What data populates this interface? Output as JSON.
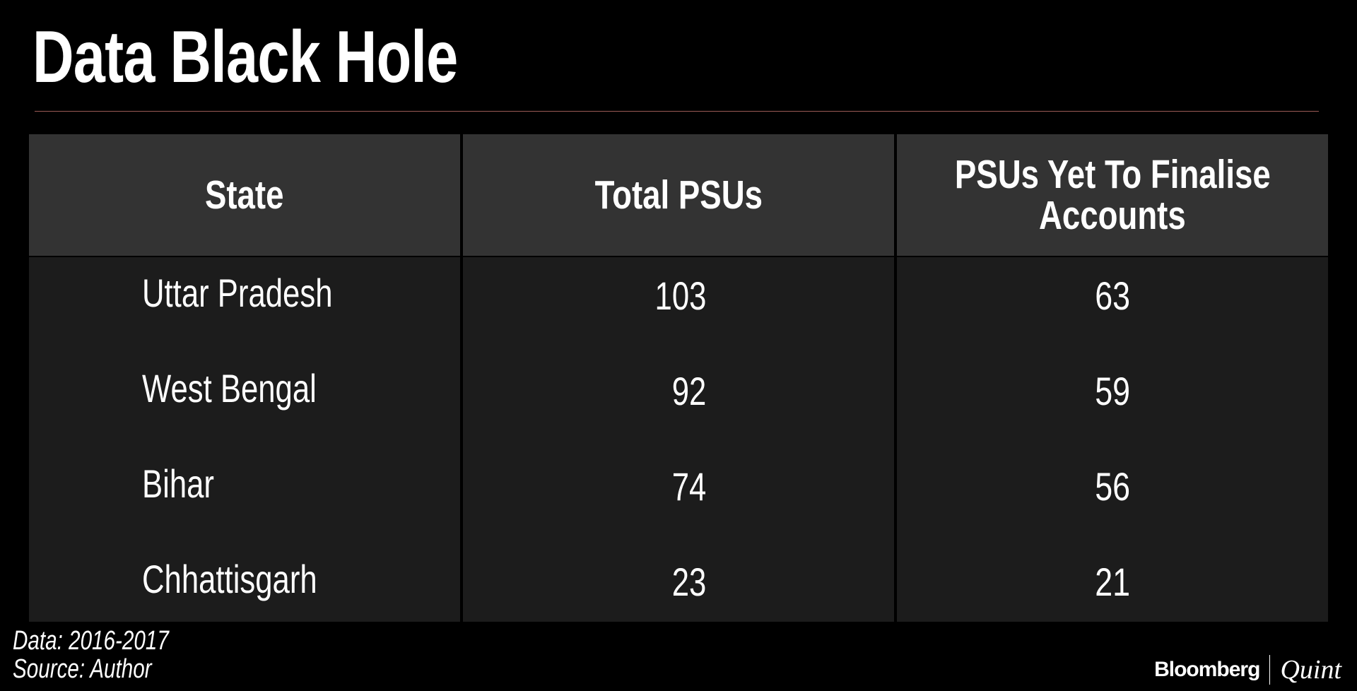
{
  "title": "Data Black Hole",
  "table": {
    "headers": [
      "State",
      "Total PSUs",
      "PSUs Yet To Finalise",
      "Accounts"
    ],
    "rows": [
      {
        "state": "Uttar Pradesh",
        "total": "103",
        "pending": "63"
      },
      {
        "state": "West Bengal",
        "total": "92",
        "pending": "59"
      },
      {
        "state": "Bihar",
        "total": "74",
        "pending": "56"
      },
      {
        "state": "Chhattisgarh",
        "total": "23",
        "pending": "21"
      }
    ]
  },
  "footer": {
    "data": "Data: 2016-2017",
    "source": "Source: Author"
  },
  "logo": {
    "brand": "Bloomberg",
    "sub": "Quint"
  },
  "colors": {
    "background": "#000000",
    "header_bg": "#333333",
    "body_bg": "#1c1c1c",
    "rule": "#9a5a55"
  }
}
